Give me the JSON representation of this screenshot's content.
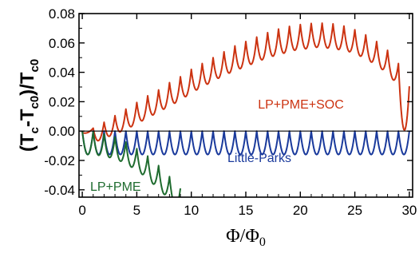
{
  "chart_data": {
    "type": "line",
    "title": "",
    "xlabel": "Φ/Φ0",
    "ylabel": "(Tc-Tc0)/Tc0",
    "xlim": [
      -0.3,
      30.3
    ],
    "ylim": [
      -0.045,
      0.08
    ],
    "xticks": [
      "0",
      "5",
      "10",
      "15",
      "20",
      "25",
      "30"
    ],
    "yticks": [
      "0.08",
      "0.06",
      "0.04",
      "0.02",
      "0.00",
      "-0.02",
      "-0.04"
    ],
    "grid": false,
    "legend": "none",
    "series": [
      {
        "name": "LP+PME+SOC",
        "color": "#cc3311",
        "x": [
          0,
          1,
          2,
          3,
          4,
          5,
          6,
          7,
          8,
          9,
          10,
          11,
          12,
          13,
          14,
          15,
          16,
          17,
          18,
          19,
          20,
          21,
          22,
          23,
          24,
          25,
          26,
          27,
          28,
          29,
          30
        ],
        "y": [
          -0.001,
          0.002,
          0.006,
          0.0105,
          0.015,
          0.0195,
          0.024,
          0.028,
          0.033,
          0.037,
          0.042,
          0.046,
          0.05,
          0.054,
          0.058,
          0.061,
          0.064,
          0.067,
          0.0695,
          0.0713,
          0.0725,
          0.0733,
          0.0735,
          0.073,
          0.0715,
          0.069,
          0.0655,
          0.061,
          0.055,
          0.046,
          0.0305
        ],
        "dips": [
          -0.001,
          -0.0065,
          -0.0035,
          -0.0005,
          0.003,
          0.007,
          0.011,
          0.015,
          0.019,
          0.0235,
          0.028,
          0.032,
          0.036,
          0.0395,
          0.0425,
          0.0455,
          0.0485,
          0.051,
          0.053,
          0.055,
          0.056,
          0.057,
          0.0565,
          0.0555,
          0.054,
          0.051,
          0.047,
          0.042,
          0.035,
          0.001
        ]
      },
      {
        "name": "Little-Parks",
        "color": "#1a3a9c",
        "x": [
          0,
          1,
          2,
          3,
          4,
          5,
          6,
          7,
          8,
          9,
          10,
          11,
          12,
          13,
          14,
          15,
          16,
          17,
          18,
          19,
          20,
          21,
          22,
          23,
          24,
          25,
          26,
          27,
          28,
          29,
          30
        ],
        "y": [
          0,
          0,
          0,
          0,
          0,
          0,
          0,
          0,
          0,
          0,
          0,
          0,
          0,
          0,
          0,
          0,
          0,
          0,
          0,
          0,
          0,
          0,
          0,
          0,
          0,
          0,
          0,
          0,
          0,
          0,
          0
        ],
        "dips": [
          -0.016,
          -0.016,
          -0.016,
          -0.016,
          -0.016,
          -0.016,
          -0.016,
          -0.016,
          -0.016,
          -0.016,
          -0.016,
          -0.016,
          -0.016,
          -0.016,
          -0.016,
          -0.016,
          -0.016,
          -0.016,
          -0.016,
          -0.016,
          -0.016,
          -0.016,
          -0.016,
          -0.016,
          -0.016,
          -0.016,
          -0.016,
          -0.016,
          -0.016,
          -0.016
        ]
      },
      {
        "name": "LP+PME",
        "color": "#1e6b2e",
        "x": [
          0,
          1,
          2,
          3,
          4,
          5,
          6,
          7,
          8,
          9
        ],
        "y": [
          0,
          -0.0005,
          -0.002,
          -0.004,
          -0.0075,
          -0.012,
          -0.017,
          -0.0235,
          -0.031,
          -0.039
        ],
        "dips": [
          -0.016,
          -0.0165,
          -0.018,
          -0.0205,
          -0.0245,
          -0.0295,
          -0.036,
          -0.043,
          -0.051
        ]
      }
    ],
    "annotations": [
      {
        "text": "LP+PME+SOC",
        "color": "#cc3311"
      },
      {
        "text": "Little-Parks",
        "color": "#1a3a9c"
      },
      {
        "text": "LP+PME",
        "color": "#1e6b2e"
      }
    ]
  }
}
